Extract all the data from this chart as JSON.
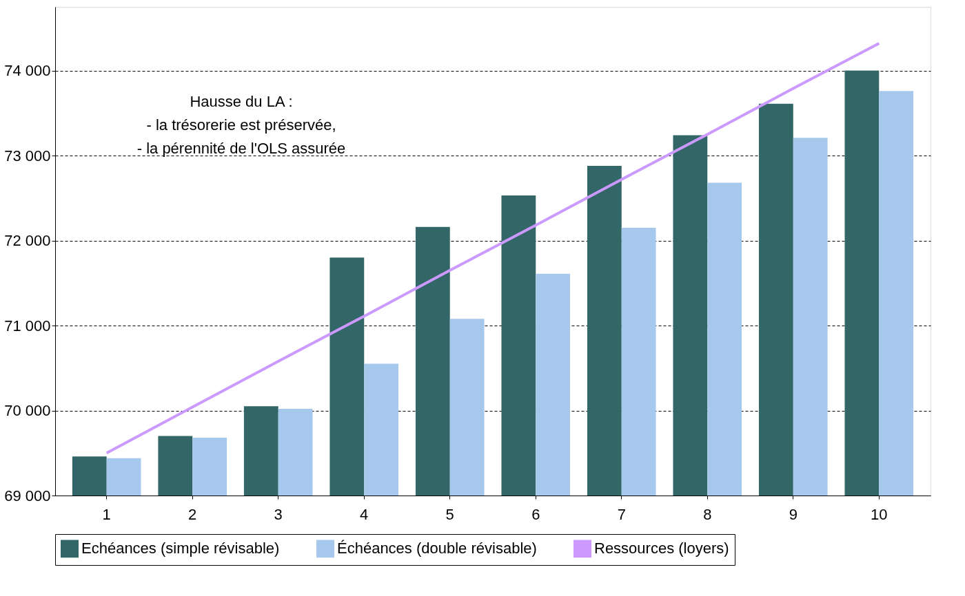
{
  "chart_data": {
    "type": "bar",
    "categories": [
      "1",
      "2",
      "3",
      "4",
      "5",
      "6",
      "7",
      "8",
      "9",
      "10"
    ],
    "series": [
      {
        "name": "Echéances (simple révisable)",
        "color": "#336666",
        "values": [
          69460,
          69700,
          70050,
          71800,
          72160,
          72530,
          72880,
          73240,
          73610,
          74000
        ]
      },
      {
        "name": "Échéances (double révisable)",
        "color": "#a6c8ec",
        "values": [
          69440,
          69680,
          70020,
          70550,
          71080,
          71610,
          72150,
          72680,
          73210,
          73760
        ]
      },
      {
        "name": "Ressources (loyers)",
        "type": "line",
        "color": "#cc99ff",
        "values": [
          69500,
          70040,
          70580,
          71110,
          71650,
          72180,
          72720,
          73250,
          73790,
          74320
        ]
      }
    ],
    "ylim": [
      69000,
      74750
    ],
    "yticks": [
      {
        "value": 69000,
        "label": "69 000"
      },
      {
        "value": 70000,
        "label": "70 000"
      },
      {
        "value": 71000,
        "label": "71 000"
      },
      {
        "value": 72000,
        "label": "72 000"
      },
      {
        "value": 73000,
        "label": "73 000"
      },
      {
        "value": 74000,
        "label": "74 000"
      }
    ],
    "grid": "y",
    "legend": "bottom",
    "annotations": [
      "Hausse du LA :\n- la trésorerie est préservée,\n- la pérennité de l'OLS assurée"
    ]
  }
}
